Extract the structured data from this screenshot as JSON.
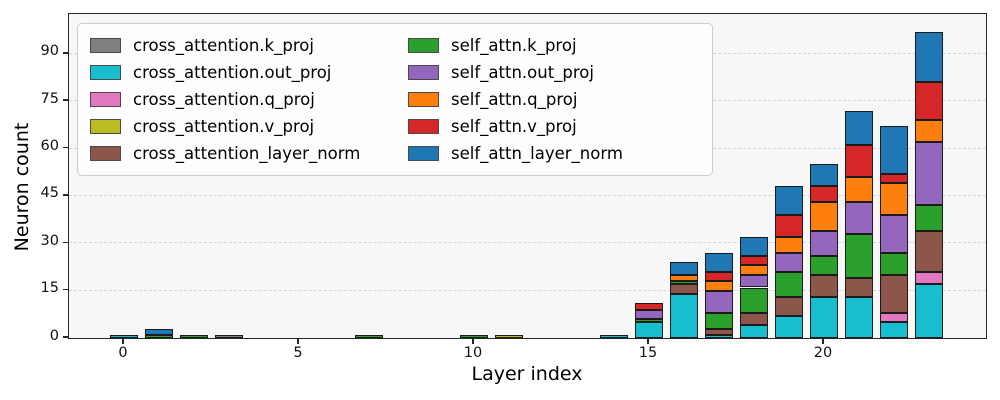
{
  "figure": {
    "background": "#ffffff",
    "plot_background": "#f7f7f7",
    "spine_color": "#262626",
    "grid_color": "#d4d4d4",
    "grid_style": "dashed-horizontal"
  },
  "chart_data": {
    "type": "bar",
    "variant": "stacked",
    "title": "",
    "xlabel": "Layer index",
    "ylabel": "Neuron count",
    "x": [
      0,
      1,
      2,
      3,
      4,
      5,
      6,
      7,
      8,
      9,
      10,
      11,
      12,
      13,
      14,
      15,
      16,
      17,
      18,
      19,
      20,
      21,
      22,
      23
    ],
    "x_ticks": [
      0,
      5,
      10,
      15,
      20
    ],
    "y_ticks": [
      0,
      15,
      30,
      45,
      60,
      75,
      90
    ],
    "ylim": [
      0,
      102.6
    ],
    "grid": true,
    "legend_position": "upper-left-inside",
    "legend_columns": 2,
    "series": [
      {
        "name": "cross_attention.k_proj",
        "color": "#7f7f7f",
        "values": [
          0,
          0,
          0,
          1,
          0,
          0,
          0,
          0,
          0,
          0,
          0,
          0,
          0,
          0,
          0,
          0,
          0,
          0,
          0,
          0,
          0,
          0,
          0,
          0
        ]
      },
      {
        "name": "cross_attention.out_proj",
        "color": "#17becf",
        "values": [
          1,
          0,
          0,
          0,
          0,
          0,
          0,
          0,
          0,
          0,
          0,
          0,
          0,
          0,
          1,
          5,
          14,
          1,
          4,
          7,
          13,
          13,
          5,
          17
        ]
      },
      {
        "name": "cross_attention.q_proj",
        "color": "#e377c2",
        "values": [
          0,
          0,
          0,
          0,
          0,
          0,
          0,
          0,
          0,
          0,
          0,
          0,
          0,
          0,
          0,
          0,
          0,
          0,
          0,
          0,
          0,
          0,
          3,
          4
        ]
      },
      {
        "name": "cross_attention.v_proj",
        "color": "#bcbd22",
        "values": [
          0,
          0,
          0,
          0,
          0,
          0,
          0,
          0,
          0,
          0,
          0,
          1,
          0,
          0,
          0,
          0,
          0,
          0,
          0,
          0,
          0,
          0,
          0,
          0
        ]
      },
      {
        "name": "cross_attention_layer_norm",
        "color": "#8c564b",
        "values": [
          0,
          0,
          0,
          0,
          0,
          0,
          0,
          0,
          0,
          0,
          0,
          0,
          0,
          0,
          0,
          0,
          3,
          2,
          4,
          6,
          7,
          6,
          12,
          13
        ]
      },
      {
        "name": "self_attn.k_proj",
        "color": "#2ca02c",
        "values": [
          0,
          1,
          1,
          0,
          0,
          0,
          0,
          1,
          0,
          0,
          1,
          0,
          0,
          0,
          0,
          1,
          1,
          5,
          8,
          8,
          6,
          14,
          7,
          8
        ]
      },
      {
        "name": "self_attn.out_proj",
        "color": "#9467bd",
        "values": [
          0,
          0,
          0,
          0,
          0,
          0,
          0,
          0,
          0,
          0,
          0,
          0,
          0,
          0,
          0,
          3,
          0,
          7,
          4,
          6,
          8,
          10,
          12,
          20
        ]
      },
      {
        "name": "self_attn.q_proj",
        "color": "#ff7f0e",
        "values": [
          0,
          0,
          0,
          0,
          0,
          0,
          0,
          0,
          0,
          0,
          0,
          0,
          0,
          0,
          0,
          0,
          2,
          3,
          3,
          5,
          9,
          8,
          10,
          7
        ]
      },
      {
        "name": "self_attn.v_proj",
        "color": "#d62728",
        "values": [
          0,
          0,
          0,
          0,
          0,
          0,
          0,
          0,
          0,
          0,
          0,
          0,
          0,
          0,
          0,
          2,
          0,
          3,
          3,
          7,
          5,
          10,
          3,
          12
        ]
      },
      {
        "name": "self_attn_layer_norm",
        "color": "#1f77b4",
        "values": [
          0,
          2,
          0,
          0,
          0,
          0,
          0,
          0,
          0,
          0,
          0,
          0,
          0,
          0,
          0,
          0,
          4,
          6,
          6,
          9,
          7,
          11,
          15,
          16
        ]
      }
    ],
    "stack_totals": [
      1,
      3,
      1,
      1,
      0,
      0,
      0,
      1,
      0,
      0,
      1,
      1,
      0,
      0,
      1,
      11,
      24,
      27,
      32,
      48,
      55,
      72,
      67,
      97
    ]
  },
  "legend": {
    "entries_left_column": [
      "cross_attention.k_proj",
      "cross_attention.out_proj",
      "cross_attention.q_proj",
      "cross_attention.v_proj",
      "cross_attention_layer_norm"
    ],
    "entries_right_column": [
      "self_attn.k_proj",
      "self_attn.out_proj",
      "self_attn.q_proj",
      "self_attn.v_proj",
      "self_attn_layer_norm"
    ]
  }
}
